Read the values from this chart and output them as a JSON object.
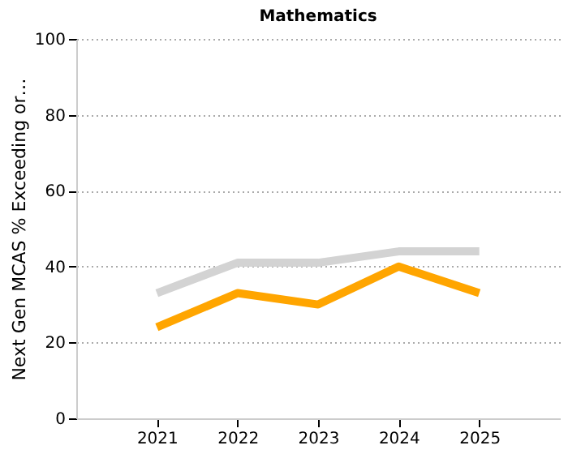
{
  "chart_data": {
    "type": "line",
    "title": "Mathematics",
    "ylabel": "Next Gen MCAS % Exceeding or…",
    "x": [
      2021,
      2022,
      2023,
      2024,
      2025
    ],
    "series": [
      {
        "color": "#d3d3d3",
        "values": [
          33,
          41,
          41,
          44,
          44
        ]
      },
      {
        "color": "#ffa500",
        "values": [
          24,
          33,
          30,
          40,
          33
        ]
      }
    ],
    "xlim": [
      2020,
      2026
    ],
    "xticks": [
      2021,
      2022,
      2023,
      2024,
      2025
    ],
    "ylim": [
      0,
      100
    ],
    "yticks": [
      0,
      20,
      40,
      60,
      80,
      100
    ],
    "grid": "y",
    "legend": false,
    "marker": "none",
    "line_style": "solid"
  }
}
